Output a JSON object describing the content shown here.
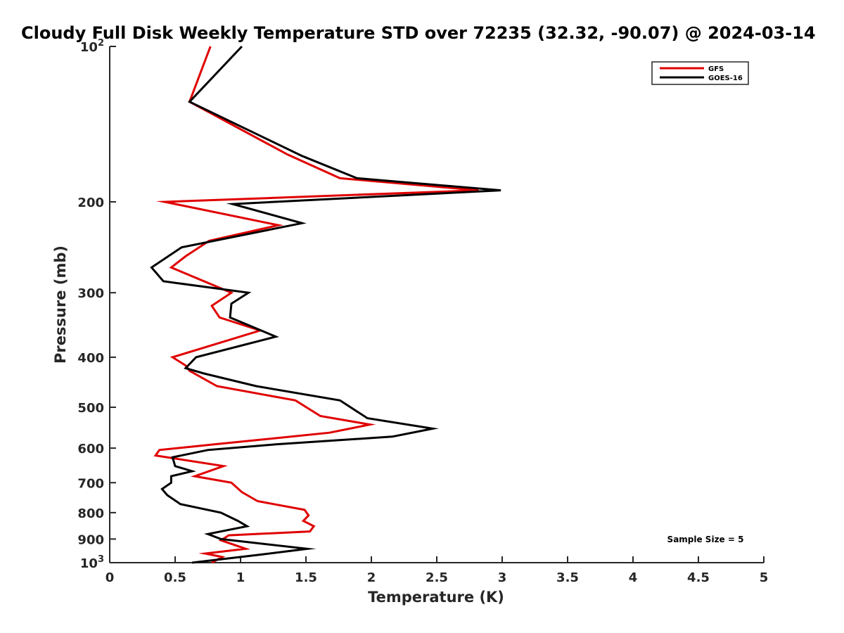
{
  "chart_data": {
    "type": "line",
    "title": "Cloudy Full Disk Weekly Temperature STD over 72235 (32.32, -90.07) @ 2024-03-14",
    "xlabel": "Temperature (K)",
    "ylabel": "Pressure (mb)",
    "xlim": [
      0,
      5
    ],
    "ylim": [
      1000,
      100
    ],
    "yscale": "log",
    "y_reversed": true,
    "x_ticks": [
      0,
      0.5,
      1,
      1.5,
      2,
      2.5,
      3,
      3.5,
      4,
      4.5,
      5
    ],
    "x_tick_labels": [
      "0",
      "0.5",
      "1",
      "1.5",
      "2",
      "2.5",
      "3",
      "3.5",
      "4",
      "4.5",
      "5"
    ],
    "y_ticks": [
      100,
      200,
      300,
      400,
      500,
      600,
      700,
      800,
      900,
      1000
    ],
    "y_tick_labels": [
      {
        "base": "10",
        "exp": "2"
      },
      {
        "base": "200",
        "exp": ""
      },
      {
        "base": "300",
        "exp": ""
      },
      {
        "base": "400",
        "exp": ""
      },
      {
        "base": "500",
        "exp": ""
      },
      {
        "base": "600",
        "exp": ""
      },
      {
        "base": "700",
        "exp": ""
      },
      {
        "base": "800",
        "exp": ""
      },
      {
        "base": "900",
        "exp": ""
      },
      {
        "base": "10",
        "exp": "3"
      }
    ],
    "legend_position": "top-right",
    "annotation": "Sample Size = 5",
    "series": [
      {
        "name": "GFS",
        "color": "#e00000",
        "x": [
          0.77,
          0.61,
          1.36,
          1.76,
          2.82,
          0.42,
          1.29,
          0.76,
          0.58,
          0.47,
          0.93,
          0.78,
          0.84,
          1.15,
          0.48,
          0.58,
          0.61,
          0.82,
          1.42,
          1.52,
          1.61,
          1.99,
          1.68,
          0.8,
          0.38,
          0.35,
          0.87,
          0.65,
          0.93,
          1.01,
          1.13,
          1.49,
          1.52,
          1.48,
          1.56,
          1.53,
          0.91,
          0.85,
          1.04,
          0.73,
          0.86,
          0.78
        ],
        "y": [
          100,
          128,
          162,
          180,
          190,
          200,
          222,
          238,
          255,
          268,
          300,
          318,
          335,
          355,
          400,
          415,
          425,
          455,
          485,
          503,
          520,
          540,
          560,
          590,
          605,
          620,
          650,
          680,
          700,
          730,
          760,
          790,
          810,
          830,
          850,
          870,
          885,
          905,
          940,
          960,
          975,
          1000
        ],
        "line_label_legend": "GFS"
      },
      {
        "name": "GOES-16",
        "color": "#000000",
        "x": [
          1.01,
          0.61,
          1.47,
          1.89,
          2.99,
          0.94,
          1.47,
          0.55,
          0.32,
          0.41,
          1.06,
          0.93,
          0.92,
          1.27,
          0.66,
          0.58,
          0.72,
          1.12,
          1.76,
          1.97,
          2.47,
          2.16,
          1.27,
          0.75,
          0.48,
          0.5,
          0.63,
          0.47,
          0.47,
          0.4,
          0.44,
          0.54,
          0.85,
          0.98,
          1.05,
          0.75,
          0.85,
          1.51,
          1.15,
          0.63
        ],
        "y": [
          100,
          128,
          163,
          180,
          190,
          202,
          220,
          245,
          268,
          285,
          300,
          315,
          335,
          365,
          400,
          420,
          430,
          455,
          485,
          525,
          550,
          570,
          590,
          605,
          625,
          650,
          665,
          680,
          700,
          720,
          740,
          770,
          800,
          830,
          850,
          880,
          900,
          940,
          965,
          1000
        ],
        "line_label_legend": "GOES-16"
      }
    ]
  }
}
